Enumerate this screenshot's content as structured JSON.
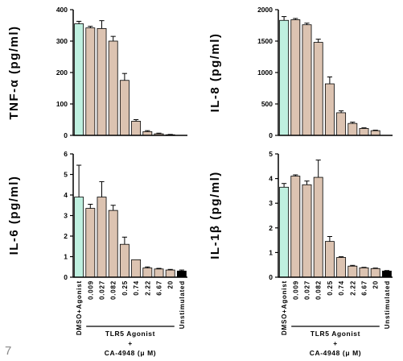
{
  "slide_number": "7",
  "colors": {
    "vehicle": "#bff0e0",
    "treatment": "#dcc3b1",
    "unstimulated": "#000000",
    "edge": "#000000"
  },
  "shared_x": {
    "categories": [
      "DMSO+Agonist",
      "0.009",
      "0.027",
      "0.082",
      "0.25",
      "0.74",
      "2.22",
      "6.67",
      "20",
      "Unstimulated"
    ],
    "group_label": "TLR5 Agonist",
    "group_plus": "+",
    "group_compound": "CA-4948 (μ M)"
  },
  "chart_data": [
    {
      "type": "bar",
      "ylabel": "TNF-α (pg/ml)",
      "ylim": [
        0,
        400
      ],
      "yticks": [
        0,
        100,
        200,
        300,
        400
      ],
      "categories": [
        "DMSO+Agonist",
        "0.009",
        "0.027",
        "0.082",
        "0.25",
        "0.74",
        "2.22",
        "6.67",
        "20",
        "Unstimulated"
      ],
      "values": [
        355,
        342,
        340,
        300,
        175,
        45,
        12,
        5,
        2,
        0
      ],
      "errors": [
        8,
        5,
        25,
        15,
        22,
        5,
        3,
        2,
        1,
        0
      ]
    },
    {
      "type": "bar",
      "ylabel": "IL-8 (pg/ml)",
      "ylim": [
        0,
        2000
      ],
      "yticks": [
        0,
        500,
        1000,
        1500,
        2000
      ],
      "categories": [
        "DMSO+Agonist",
        "0.009",
        "0.027",
        "0.082",
        "0.25",
        "0.74",
        "2.22",
        "6.67",
        "20",
        "Unstimulated"
      ],
      "values": [
        1830,
        1840,
        1760,
        1480,
        820,
        360,
        190,
        110,
        75,
        0
      ],
      "errors": [
        60,
        20,
        25,
        50,
        110,
        30,
        20,
        10,
        8,
        0
      ]
    },
    {
      "type": "bar",
      "ylabel": "IL-6 (pg/ml)",
      "ylim": [
        0,
        6
      ],
      "yticks": [
        0,
        1,
        2,
        3,
        4,
        5,
        6
      ],
      "categories": [
        "DMSO+Agonist",
        "0.009",
        "0.027",
        "0.082",
        "0.25",
        "0.74",
        "2.22",
        "6.67",
        "20",
        "Unstimulated"
      ],
      "values": [
        3.9,
        3.35,
        3.9,
        3.25,
        1.6,
        0.85,
        0.45,
        0.4,
        0.35,
        0.3
      ],
      "errors": [
        1.55,
        0.2,
        0.75,
        0.25,
        0.35,
        0.0,
        0.05,
        0.03,
        0.03,
        0.05
      ]
    },
    {
      "type": "bar",
      "ylabel": "IL-1β (pg/ml)",
      "ylim": [
        0,
        5
      ],
      "yticks": [
        0,
        1,
        2,
        3,
        4,
        5
      ],
      "categories": [
        "DMSO+Agonist",
        "0.009",
        "0.027",
        "0.082",
        "0.25",
        "0.74",
        "2.22",
        "6.67",
        "20",
        "Unstimulated"
      ],
      "values": [
        3.65,
        4.1,
        3.75,
        4.05,
        1.45,
        0.8,
        0.45,
        0.38,
        0.35,
        0.25
      ],
      "errors": [
        0.15,
        0.05,
        0.15,
        0.7,
        0.2,
        0.03,
        0.03,
        0.02,
        0.02,
        0.02
      ]
    }
  ]
}
